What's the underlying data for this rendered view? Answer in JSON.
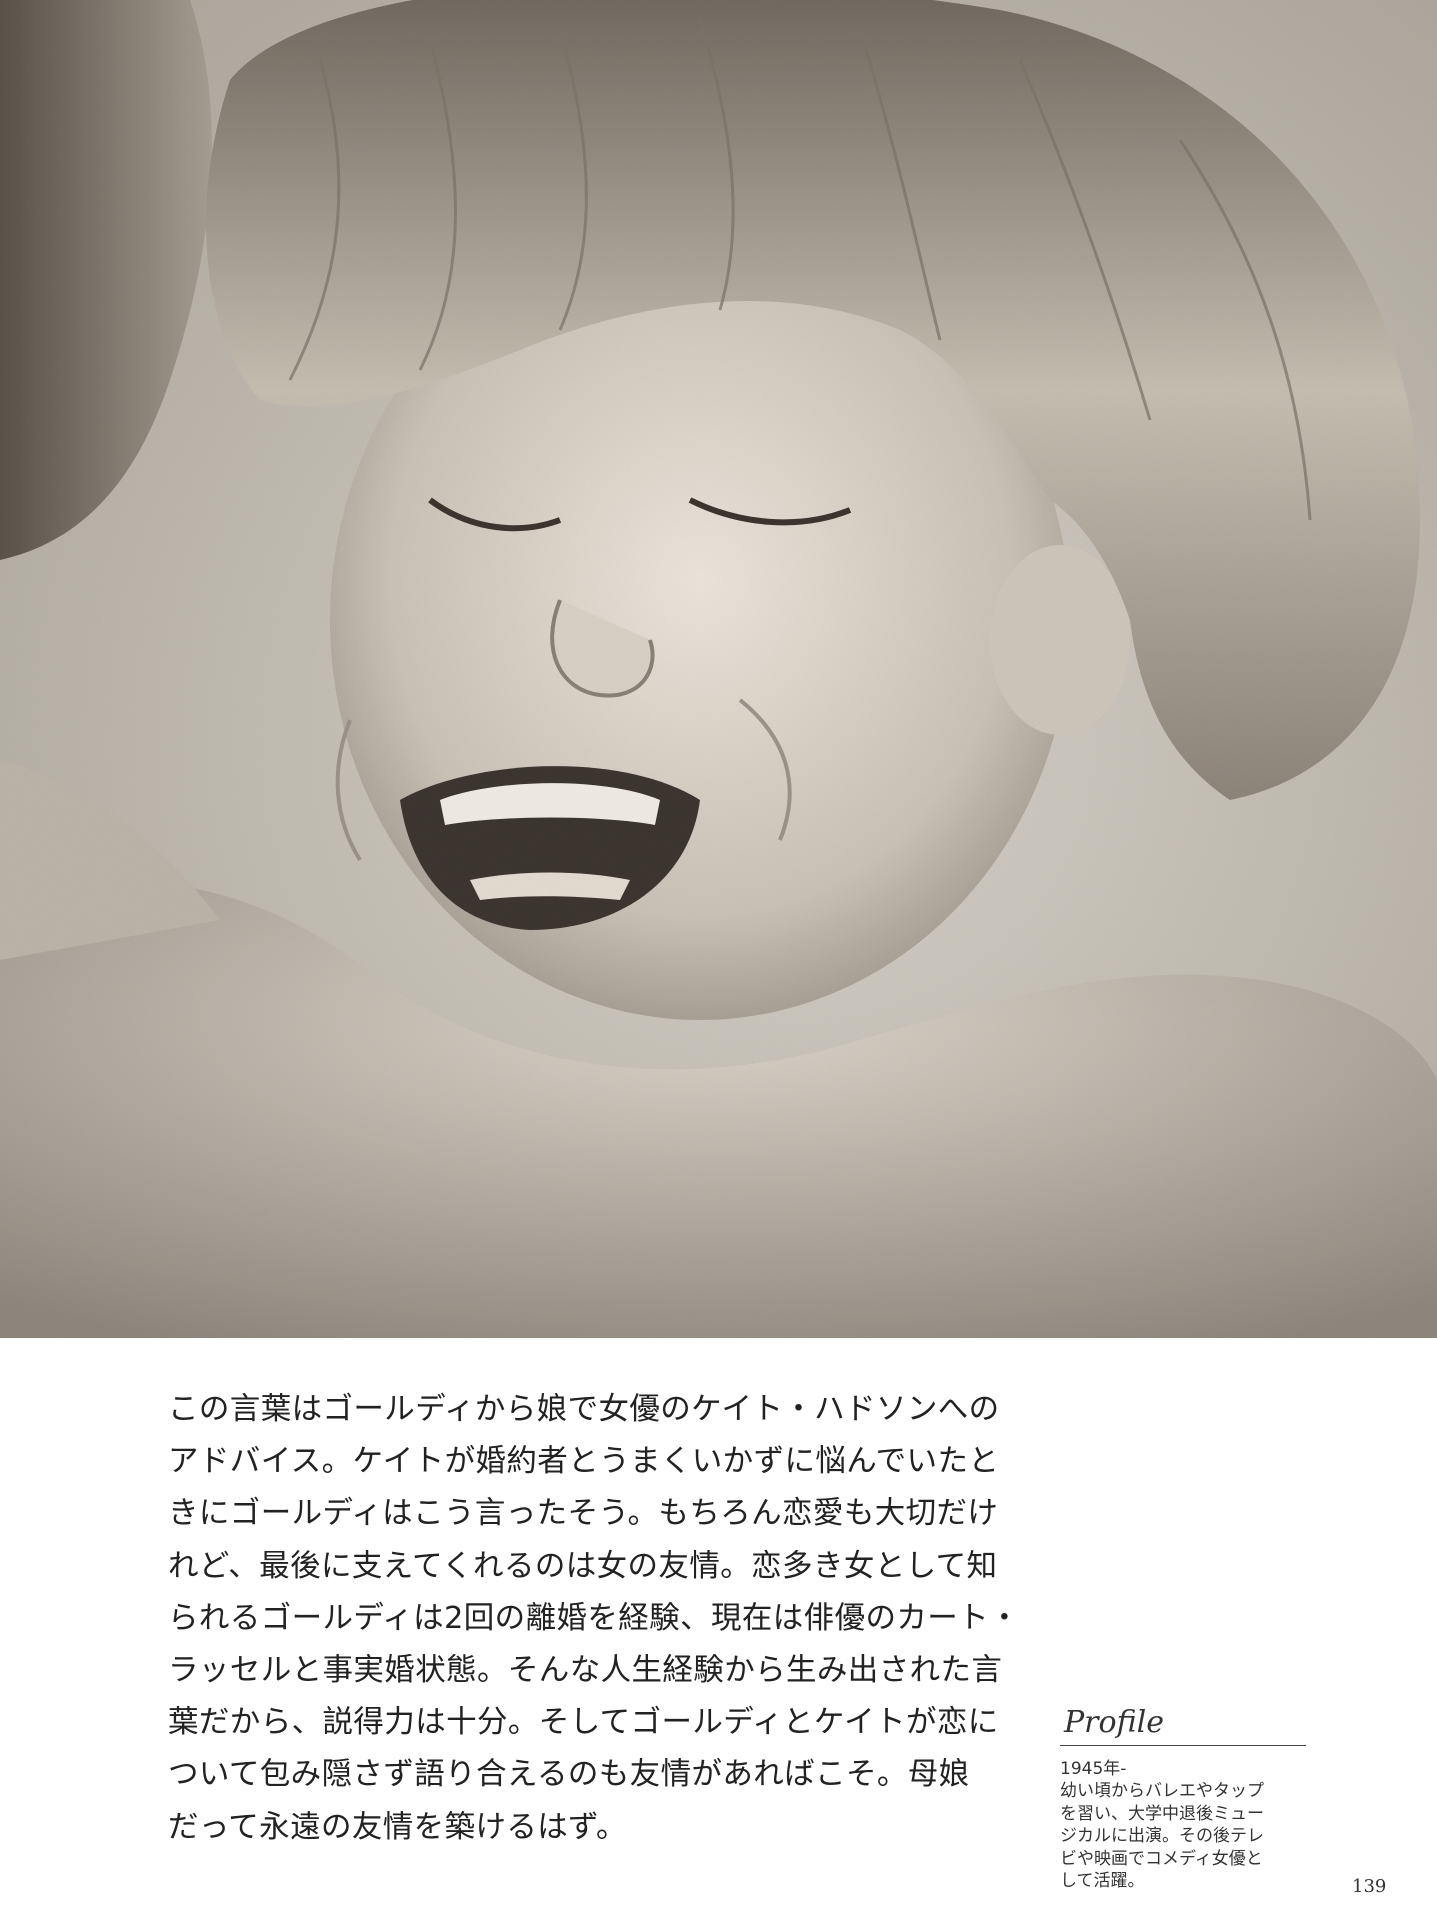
{
  "photo": {
    "description_icon": "child-portrait-photo"
  },
  "body_text": {
    "lines": [
      "この言葉はゴールディから娘で女優のケイト・ハドソンへの",
      "アドバイス。ケイトが婚約者とうまくいかずに悩んでいたと",
      "きにゴールディはこう言ったそう。もちろん恋愛も大切だけ",
      "れど、最後に支えてくれるのは女の友情。恋多き女として知",
      "られるゴールディは2回の離婚を経験、現在は俳優のカート・",
      "ラッセルと事実婚状態。そんな人生経験から生み出された言",
      "葉だから、説得力は十分。そしてゴールディとケイトが恋に",
      "ついて包み隠さず語り合えるのも友情があればこそ。母娘",
      "だって永遠の友情を築けるはず。"
    ]
  },
  "profile": {
    "heading": "Profile",
    "years": "1945年-",
    "lines": [
      "幼い頃からバレエやタップ",
      "を習い、大学中退後ミュー",
      "ジカルに出演。その後テレ",
      "ビや映画でコメディ女優と",
      "して活躍。"
    ]
  },
  "page_number": "139"
}
